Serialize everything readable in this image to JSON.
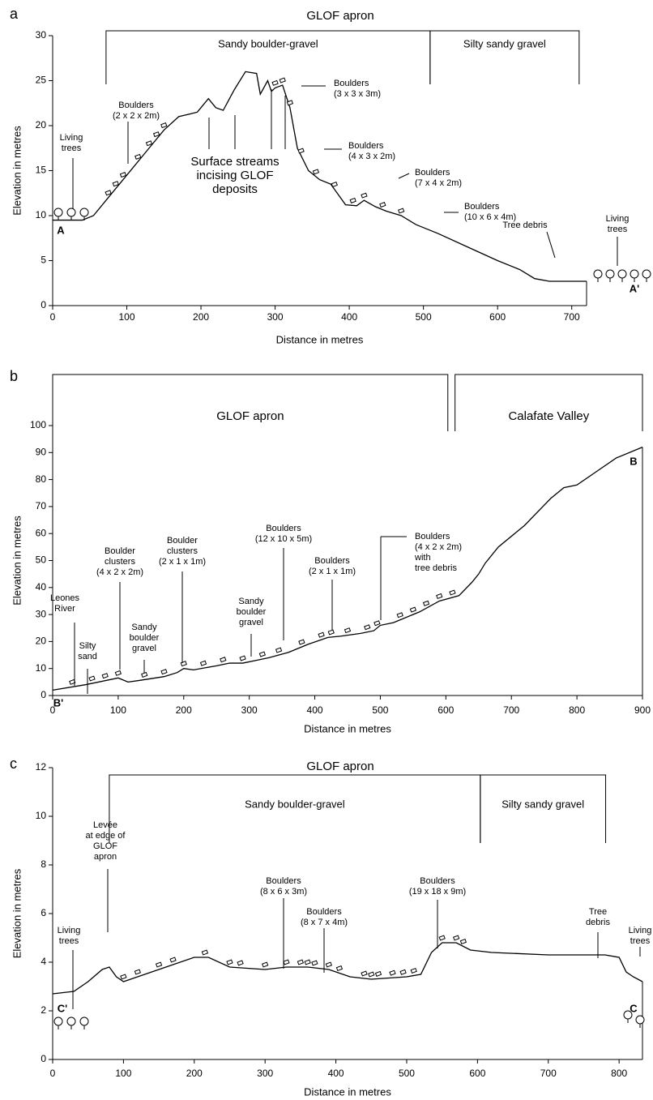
{
  "chart_data": [
    {
      "type": "line",
      "panel": "a",
      "title": "GLOF apron",
      "zones": [
        {
          "label": "Sandy boulder-gravel",
          "from": 72,
          "to": 509
        },
        {
          "label": "Silty sandy gravel",
          "from": 509,
          "to": 710
        }
      ],
      "x": [
        0,
        40,
        55,
        70,
        100,
        130,
        150,
        170,
        185,
        195,
        200,
        210,
        220,
        230,
        245,
        260,
        275,
        280,
        290,
        295,
        300,
        310,
        320,
        330,
        345,
        360,
        375,
        395,
        410,
        420,
        435,
        450,
        470,
        490,
        520,
        560,
        600,
        630,
        650,
        670,
        720
      ],
      "values": [
        9.5,
        9.5,
        10,
        11.5,
        14.5,
        17.5,
        19.5,
        21,
        21.3,
        21.5,
        22,
        23,
        22,
        21.7,
        24,
        26,
        25.8,
        23.5,
        25,
        23.8,
        24.2,
        24.5,
        22,
        17.5,
        15,
        14,
        13.5,
        11.2,
        11.1,
        11.7,
        11,
        10.5,
        10,
        9,
        8,
        6.5,
        5,
        4,
        3,
        2.7,
        2.7
      ],
      "color": "#000000",
      "xlim": [
        0,
        720
      ],
      "ylim": [
        0,
        30
      ],
      "xticks": [
        0,
        100,
        200,
        300,
        400,
        500,
        600,
        700
      ],
      "yticks": [
        0,
        5,
        10,
        15,
        20,
        25,
        30
      ],
      "x_label": "Distance in metres",
      "y_label": "Elevation in metres",
      "start_label": "A",
      "end_label": "A'",
      "annotations": [
        {
          "lines": [
            "Living",
            "trees"
          ]
        },
        {
          "lines": [
            "Boulders",
            "(2 x 2 x 2m)"
          ]
        },
        {
          "lines": [
            "Surface streams",
            "incising GLOF",
            "deposits"
          ]
        },
        {
          "lines": [
            "Boulders",
            "(3 x 3 x 3m)"
          ]
        },
        {
          "lines": [
            "Boulders",
            "(4 x 3 x 2m)"
          ]
        },
        {
          "lines": [
            "Boulders",
            "(7 x 4 x 2m)"
          ]
        },
        {
          "lines": [
            "Boulders",
            "(10 x 6 x 4m)"
          ]
        },
        {
          "lines": [
            "Tree debris"
          ]
        },
        {
          "lines": [
            "Living",
            "trees"
          ]
        }
      ]
    },
    {
      "type": "line",
      "panel": "b",
      "zones": [
        {
          "label": "GLOF apron",
          "from": 0,
          "to": 603
        },
        {
          "label": "Calafate Valley",
          "from": 614,
          "to": 900
        }
      ],
      "x": [
        0,
        50,
        80,
        100,
        115,
        130,
        170,
        190,
        200,
        215,
        250,
        270,
        290,
        310,
        330,
        360,
        390,
        420,
        440,
        470,
        490,
        500,
        520,
        560,
        590,
        620,
        640,
        650,
        660,
        680,
        720,
        760,
        780,
        800,
        830,
        860,
        900
      ],
      "values": [
        2,
        4,
        5.5,
        6.5,
        5,
        5.5,
        7,
        8.5,
        10,
        9.5,
        11,
        12,
        12,
        13,
        14,
        16,
        19,
        21.5,
        22,
        23,
        24,
        26,
        27,
        31,
        35,
        37,
        42,
        45,
        49,
        55,
        63,
        73,
        77,
        78,
        83,
        88,
        92
      ],
      "color": "#000000",
      "xlim": [
        0,
        900
      ],
      "ylim": [
        0,
        100
      ],
      "xticks": [
        0,
        100,
        200,
        300,
        400,
        500,
        600,
        700,
        800,
        900
      ],
      "yticks": [
        0,
        10,
        20,
        30,
        40,
        50,
        60,
        70,
        80,
        90,
        100
      ],
      "x_label": "Distance in metres",
      "y_label": "Elevation in metres",
      "start_label": "B'",
      "end_label": "B",
      "annotations": [
        {
          "lines": [
            "Leones",
            "River"
          ]
        },
        {
          "lines": [
            "Silty",
            "sand"
          ]
        },
        {
          "lines": [
            "Boulder",
            "clusters",
            "(4 x 2 x 2m)"
          ]
        },
        {
          "lines": [
            "Sandy",
            "boulder",
            "gravel"
          ]
        },
        {
          "lines": [
            "Boulder",
            "clusters",
            "(2 x 1 x 1m)"
          ]
        },
        {
          "lines": [
            "Sandy",
            "boulder",
            "gravel"
          ]
        },
        {
          "lines": [
            "Boulders",
            "(12 x 10 x 5m)"
          ]
        },
        {
          "lines": [
            "Boulders",
            "(2 x 1 x 1m)"
          ]
        },
        {
          "lines": [
            "Boulders",
            "(4 x 2 x 2m)",
            "with",
            "tree debris"
          ]
        }
      ]
    },
    {
      "type": "line",
      "panel": "c",
      "title": "GLOF apron",
      "zones": [
        {
          "label": "Sandy boulder-gravel",
          "from": 80,
          "to": 604
        },
        {
          "label": "Silty sandy gravel",
          "from": 604,
          "to": 781
        }
      ],
      "x": [
        0,
        30,
        50,
        70,
        80,
        90,
        100,
        130,
        160,
        200,
        220,
        250,
        300,
        330,
        360,
        390,
        420,
        450,
        500,
        520,
        535,
        550,
        570,
        590,
        620,
        700,
        780,
        800,
        810,
        820,
        833
      ],
      "values": [
        2.7,
        2.8,
        3.2,
        3.7,
        3.8,
        3.4,
        3.2,
        3.5,
        3.8,
        4.2,
        4.2,
        3.8,
        3.7,
        3.8,
        3.8,
        3.7,
        3.4,
        3.3,
        3.4,
        3.5,
        4.4,
        4.8,
        4.8,
        4.5,
        4.4,
        4.3,
        4.3,
        4.2,
        3.6,
        3.4,
        3.2
      ],
      "color": "#000000",
      "xlim": [
        0,
        833
      ],
      "ylim": [
        0,
        12
      ],
      "xticks": [
        0,
        100,
        200,
        300,
        400,
        500,
        600,
        700,
        800
      ],
      "yticks": [
        0,
        2,
        4,
        6,
        8,
        10,
        12
      ],
      "x_label": "Distance in metres",
      "y_label": "Elevation in metres",
      "start_label": "C'",
      "end_label": "C",
      "annotations": [
        {
          "lines": [
            "Living",
            "trees"
          ]
        },
        {
          "lines": [
            "Levée",
            "at edge of",
            "GLOF",
            "apron"
          ]
        },
        {
          "lines": [
            "Boulders",
            "(8 x 6 x 3m)"
          ]
        },
        {
          "lines": [
            "Boulders",
            "(8 x 7 x 4m)"
          ]
        },
        {
          "lines": [
            "Boulders",
            "(19 x 18 x 9m)"
          ]
        },
        {
          "lines": [
            "Tree",
            "debris"
          ]
        },
        {
          "lines": [
            "Living",
            "trees"
          ]
        }
      ]
    }
  ]
}
